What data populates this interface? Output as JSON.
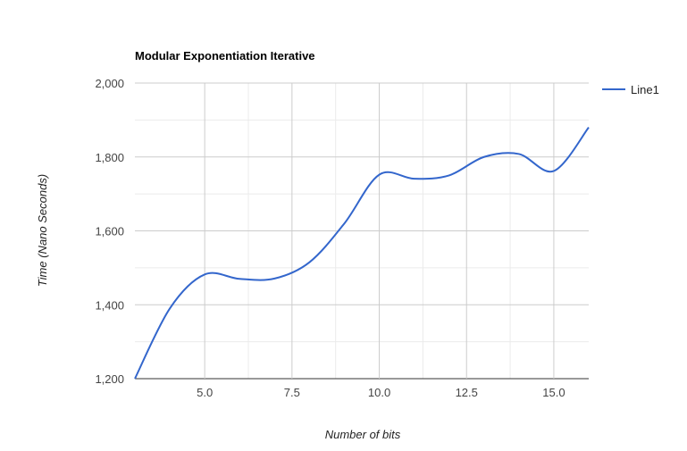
{
  "chart_data": {
    "type": "line",
    "title": "Modular Exponentiation Iterative",
    "xlabel": "Number of bits",
    "ylabel": "Time (Nano Seconds)",
    "xlim": [
      3,
      16
    ],
    "ylim": [
      1200,
      2000
    ],
    "x_ticks": [
      5.0,
      7.5,
      10.0,
      12.5,
      15.0
    ],
    "x_tick_labels": [
      "5.0",
      "7.5",
      "10.0",
      "12.5",
      "15.0"
    ],
    "y_ticks": [
      1200,
      1400,
      1600,
      1800,
      2000
    ],
    "y_tick_labels": [
      "1,200",
      "1,400",
      "1,600",
      "1,800",
      "2,000"
    ],
    "grid": true,
    "legend_position": "right",
    "series": [
      {
        "name": "Line1",
        "color": "#3366cc",
        "x": [
          3,
          4,
          5,
          6,
          7,
          8,
          9,
          10,
          11,
          12,
          13,
          14,
          15,
          16
        ],
        "y": [
          1200,
          1390,
          1482,
          1470,
          1471,
          1515,
          1620,
          1752,
          1741,
          1750,
          1800,
          1808,
          1762,
          1880
        ]
      }
    ]
  }
}
